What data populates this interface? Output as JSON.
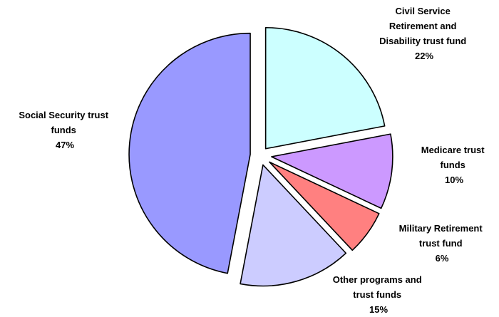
{
  "chart_data": {
    "type": "pie",
    "title": "",
    "legend": "none",
    "slices": [
      {
        "id": "civil-service",
        "label_lines": [
          "Civil Service",
          "Retirement and",
          "Disability trust fund"
        ],
        "percent_label": "22%",
        "value": 22,
        "color": "#ccffff"
      },
      {
        "id": "medicare",
        "label_lines": [
          "Medicare trust",
          "funds"
        ],
        "percent_label": "10%",
        "value": 10,
        "color": "#cc99ff"
      },
      {
        "id": "military-retirement",
        "label_lines": [
          "Military Retirement",
          "trust fund"
        ],
        "percent_label": "6%",
        "value": 6,
        "color": "#ff8080"
      },
      {
        "id": "other-programs",
        "label_lines": [
          "Other programs and",
          "trust funds"
        ],
        "percent_label": "15%",
        "value": 15,
        "color": "#ccccff"
      },
      {
        "id": "social-security",
        "label_lines": [
          "Social Security trust",
          "funds"
        ],
        "percent_label": "47%",
        "value": 47,
        "color": "#9999ff"
      }
    ]
  }
}
